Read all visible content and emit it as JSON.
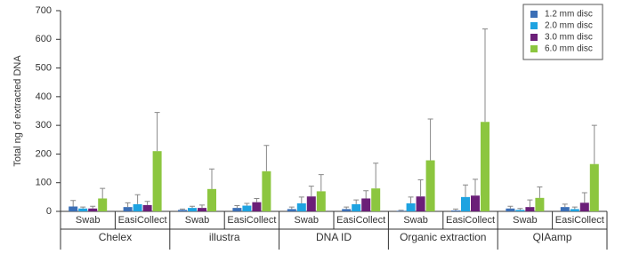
{
  "chart_data": {
    "type": "bar",
    "y_label": "Total ng of extracted DNA",
    "groups": [
      "Chelex",
      "illustra",
      "DNA ID",
      "Organic extraction",
      "QIAamp"
    ],
    "categories": [
      "Swab",
      "EasiCollect",
      "Swab",
      "EasiCollect",
      "Swab",
      "EasiCollect",
      "Swab",
      "EasiCollect",
      "Swab",
      "EasiCollect"
    ],
    "series": [
      {
        "name": "1.2 mm disc",
        "color": "#3b6fb6",
        "values": [
          17,
          15,
          5,
          12,
          8,
          8,
          2,
          3,
          10,
          15
        ],
        "errors": [
          21,
          15,
          3,
          8,
          7,
          7,
          2,
          5,
          8,
          10
        ]
      },
      {
        "name": "2.0 mm disc",
        "color": "#1ea3e1",
        "values": [
          10,
          25,
          12,
          20,
          28,
          25,
          28,
          50,
          5,
          8
        ],
        "errors": [
          5,
          33,
          6,
          8,
          22,
          15,
          22,
          42,
          5,
          7
        ]
      },
      {
        "name": "3.0 mm disc",
        "color": "#6b1f78",
        "values": [
          10,
          22,
          12,
          32,
          52,
          45,
          52,
          55,
          15,
          30
        ],
        "errors": [
          8,
          13,
          10,
          13,
          36,
          27,
          58,
          57,
          25,
          35
        ]
      },
      {
        "name": "6.0 mm disc",
        "color": "#8cc63f",
        "values": [
          45,
          210,
          78,
          140,
          70,
          80,
          178,
          312,
          47,
          165
        ],
        "errors": [
          35,
          135,
          70,
          90,
          58,
          88,
          144,
          324,
          38,
          135
        ]
      }
    ],
    "ylim": [
      0,
      700
    ],
    "yticks": [
      0,
      100,
      200,
      300,
      400,
      500,
      600,
      700
    ],
    "legend": "top-right"
  }
}
